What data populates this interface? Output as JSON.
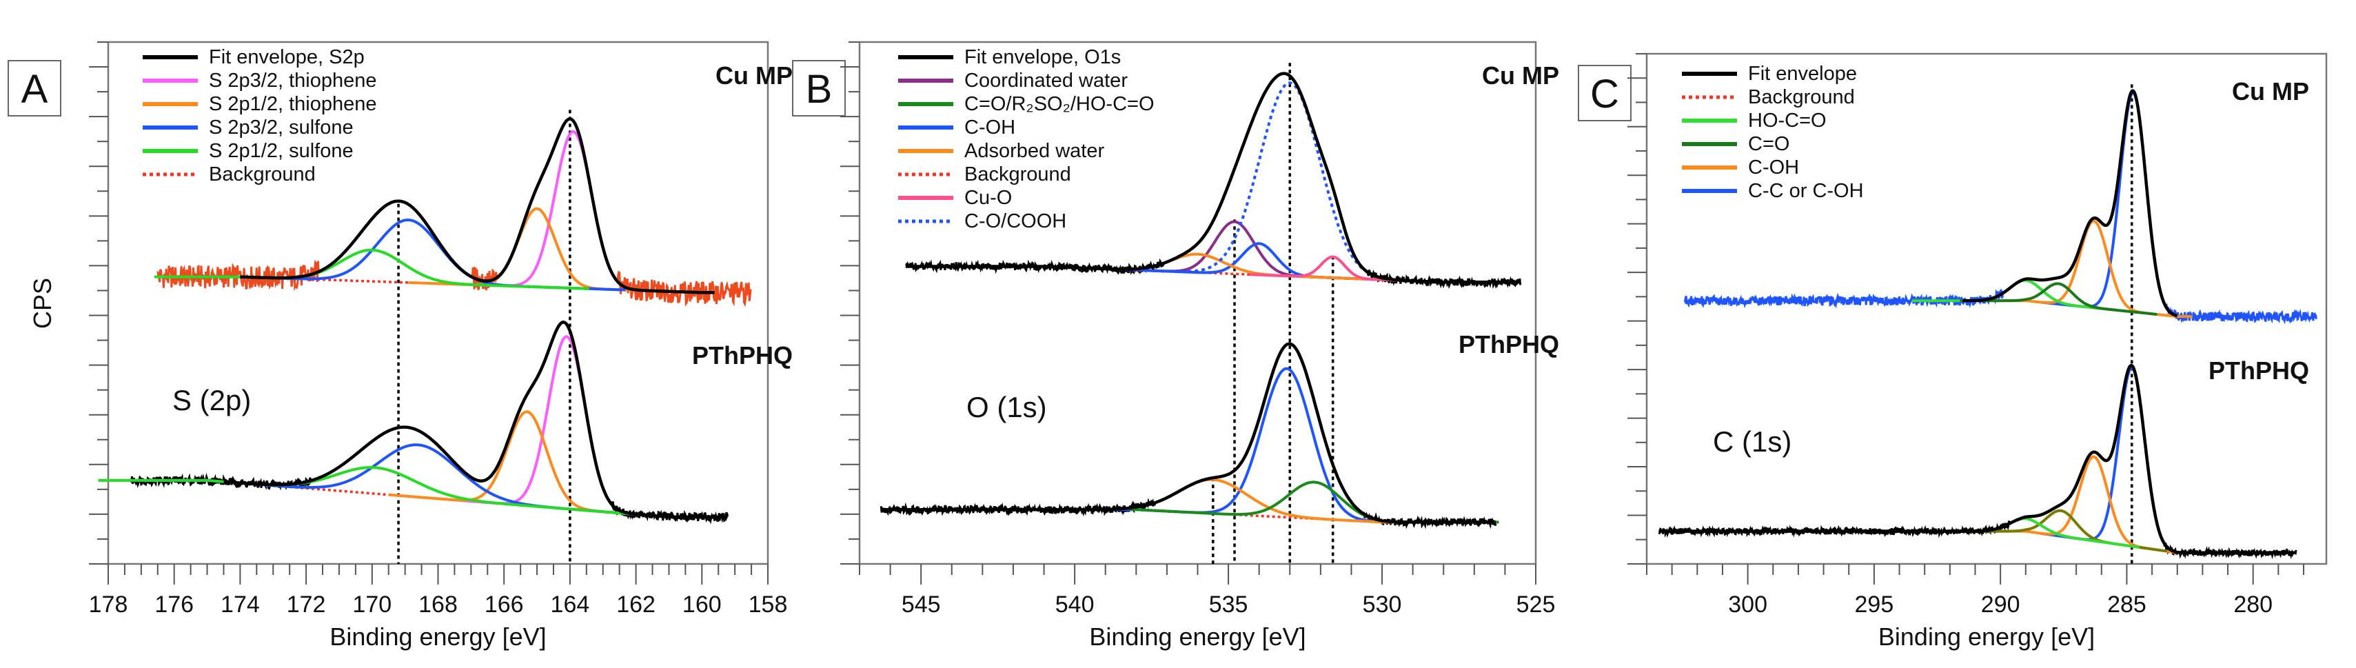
{
  "chart_data": [
    {
      "panel_label": "A",
      "type": "line",
      "xlabel": "Binding energy [eV]",
      "ylabel": "CPS",
      "xlim": [
        178,
        158
      ],
      "ylim": [
        0,
        100
      ],
      "xticks": [
        "178",
        "176",
        "174",
        "172",
        "170",
        "168",
        "166",
        "164",
        "162",
        "160",
        "158"
      ],
      "xtick_values": [
        178,
        176,
        174,
        172,
        170,
        168,
        166,
        164,
        162,
        160,
        158
      ],
      "minor_step": 0.5,
      "region_label": "S (2p)",
      "legend": [
        {
          "label": "Fit envelope, S2p",
          "color": "#000000",
          "style": "solid"
        },
        {
          "label": "S 2p3/2, thiophene",
          "color": "#ff5cff",
          "style": "solid"
        },
        {
          "label": "S 2p1/2, thiophene",
          "color": "#ff8a1c",
          "style": "solid"
        },
        {
          "label": "S 2p3/2, sulfone",
          "color": "#1f55ff",
          "style": "solid"
        },
        {
          "label": "S 2p1/2, sulfone",
          "color": "#22dd22",
          "style": "solid"
        },
        {
          "label": "Background",
          "color": "#ff3020",
          "style": "dotted"
        }
      ],
      "reference_lines": [
        [
          169.2,
          69
        ],
        [
          164.0,
          87
        ]
      ],
      "samples": [
        {
          "name": "Cu MP",
          "raw_color": "#ee4a1e",
          "noise": 2.2,
          "data_range": [
            176.5,
            158.5
          ],
          "fit_range": [
            174.0,
            159.6
          ],
          "background": [
            [
              174,
              55
            ],
            [
              160,
              52
            ]
          ],
          "components": [
            {
              "legend": 1,
              "center": 163.9,
              "amplitude": 30,
              "fwhm": 1.3
            },
            {
              "legend": 2,
              "center": 165.0,
              "amplitude": 15,
              "fwhm": 1.3
            },
            {
              "legend": 3,
              "center": 168.9,
              "amplitude": 12,
              "fwhm": 2.2
            },
            {
              "legend": 4,
              "center": 170.0,
              "amplitude": 6,
              "fwhm": 2.2
            }
          ]
        },
        {
          "name": "PThPHQ",
          "raw_color": "#000000",
          "noise": 0.8,
          "data_range": [
            177.3,
            159.2
          ],
          "fit_range": [
            174.5,
            159.2
          ],
          "background": [
            [
              175,
              16
            ],
            [
              161,
              9
            ]
          ],
          "components": [
            {
              "legend": 1,
              "center": 164.1,
              "amplitude": 33,
              "fwhm": 1.3
            },
            {
              "legend": 2,
              "center": 165.3,
              "amplitude": 18,
              "fwhm": 1.4
            },
            {
              "legend": 3,
              "center": 168.6,
              "amplitude": 10,
              "fwhm": 2.8
            },
            {
              "legend": 4,
              "center": 169.9,
              "amplitude": 5,
              "fwhm": 2.8
            }
          ]
        }
      ]
    },
    {
      "panel_label": "B",
      "type": "line",
      "xlabel": "Binding energy [eV]",
      "ylabel": "",
      "xlim": [
        547,
        525
      ],
      "ylim": [
        0,
        100
      ],
      "xticks": [
        "545",
        "540",
        "535",
        "530",
        "525"
      ],
      "xtick_values": [
        545,
        540,
        535,
        530,
        525
      ],
      "minor_step": 1,
      "region_label": "O (1s)",
      "legend": [
        {
          "label": "Fit envelope, O1s",
          "color": "#000000",
          "style": "solid"
        },
        {
          "label": " Coordinated water",
          "color": "#8a2e8a",
          "style": "solid"
        },
        {
          "label": "C=O/R₂SO₂/HO-C=O",
          "color": "#1a8a1a",
          "style": "solid"
        },
        {
          "label": "C-OH",
          "color": "#1f55ff",
          "style": "solid"
        },
        {
          "label": "Adsorbed water",
          "color": "#ff8a1c",
          "style": "solid"
        },
        {
          "label": "Background",
          "color": "#ff3020",
          "style": "dotted"
        },
        {
          "label": " Cu-O",
          "color": "#ff4f8f",
          "style": "solid"
        },
        {
          "label": "C-O/COOH",
          "color": "#1f55ff",
          "style": "dotted"
        }
      ],
      "reference_lines": [
        [
          535.5,
          16.5
        ],
        [
          534.8,
          66
        ],
        [
          533.0,
          96
        ],
        [
          531.6,
          59
        ]
      ],
      "samples": [
        {
          "name": "Cu MP",
          "raw_color": "#000000",
          "noise": 0.7,
          "data_range": [
            545.5,
            525.5
          ],
          "fit_range": [
            545.5,
            525.5
          ],
          "background": [
            [
              541,
              57
            ],
            [
              528,
              54
            ]
          ],
          "components": [
            {
              "legend": 1,
              "center": 534.8,
              "amplitude": 10,
              "fwhm": 1.5
            },
            {
              "legend": 3,
              "center": 534.0,
              "amplitude": 6,
              "fwhm": 1.3
            },
            {
              "legend": 4,
              "center": 536.0,
              "amplitude": 3.5,
              "fwhm": 2.0
            },
            {
              "legend": 6,
              "center": 531.6,
              "amplitude": 4,
              "fwhm": 0.9
            },
            {
              "legend": 7,
              "center": 533.0,
              "amplitude": 37,
              "fwhm": 2.3
            }
          ]
        },
        {
          "name": "PThPHQ",
          "raw_color": "#000000",
          "noise": 0.7,
          "data_range": [
            546.3,
            526.3
          ],
          "fit_range": [
            546.3,
            526.3
          ],
          "background": [
            [
              538,
              10.4
            ],
            [
              530,
              8
            ]
          ],
          "components": [
            {
              "legend": 3,
              "center": 533.1,
              "amplitude": 28.5,
              "fwhm": 1.9
            },
            {
              "legend": 4,
              "center": 535.5,
              "amplitude": 6.5,
              "fwhm": 2.6
            },
            {
              "legend": 2,
              "center": 532.2,
              "amplitude": 7,
              "fwhm": 2.0
            }
          ]
        }
      ]
    },
    {
      "panel_label": "C",
      "type": "line",
      "xlabel": "Binding energy [eV]",
      "ylabel": "",
      "xlim": [
        304,
        277.1
      ],
      "ylim": [
        0,
        100
      ],
      "xticks": [
        "300",
        "295",
        "290",
        "285",
        "280"
      ],
      "xtick_values": [
        300,
        295,
        290,
        285,
        280
      ],
      "minor_step": 1,
      "region_label": "C (1s)",
      "legend": [
        {
          "label": "Fit envelope",
          "color": "#000000",
          "style": "solid"
        },
        {
          "label": "Background",
          "color": "#ff3020",
          "style": "dotted"
        },
        {
          "label": "HO-C=O",
          "color": "#33dd33",
          "style": "solid"
        },
        {
          "label": "C=O",
          "color": "#1a7a1a",
          "style": "solid"
        },
        {
          "label": "C-OH",
          "color": "#ff8a1c",
          "style": "solid"
        },
        {
          "label": "C-C or C-OH",
          "color": "#1f55ff",
          "style": "solid"
        }
      ],
      "reference_lines": [
        [
          284.8,
          94
        ]
      ],
      "samples": [
        {
          "name": "Cu MP",
          "raw_color": "#1f55ff",
          "noise": 0.9,
          "data_range": [
            302.5,
            277.5
          ],
          "fit_range": [
            291.5,
            283.0
          ],
          "background": [
            [
              289,
              51.6
            ],
            [
              283,
              48.5
            ]
          ],
          "components": [
            {
              "legend": 5,
              "center": 284.75,
              "amplitude": 43,
              "fwhm": 1.2
            },
            {
              "legend": 4,
              "center": 286.3,
              "amplitude": 17,
              "fwhm": 1.3
            },
            {
              "legend": 2,
              "center": 289.0,
              "amplitude": 4,
              "fwhm": 1.5
            },
            {
              "legend": 3,
              "center": 287.7,
              "amplitude": 4,
              "fwhm": 1.3
            }
          ]
        },
        {
          "name": "PThPHQ",
          "raw_color": "#000000",
          "noise": 0.6,
          "data_range": [
            303.5,
            278.3
          ],
          "fit_range": [
            303.5,
            278.3
          ],
          "background": [
            [
              289,
              6.4
            ],
            [
              283,
              2.2
            ]
          ],
          "components": [
            {
              "legend": 5,
              "center": 284.8,
              "amplitude": 35,
              "fwhm": 1.2
            },
            {
              "legend": 4,
              "center": 286.3,
              "amplitude": 16.5,
              "fwhm": 1.3
            },
            {
              "legend": 3,
              "center": 287.6,
              "amplitude": 5,
              "fwhm": 1.4,
              "color": "#7a7a00"
            },
            {
              "legend": 2,
              "center": 289.0,
              "amplitude": 2.5,
              "fwhm": 1.5
            }
          ]
        }
      ]
    }
  ]
}
